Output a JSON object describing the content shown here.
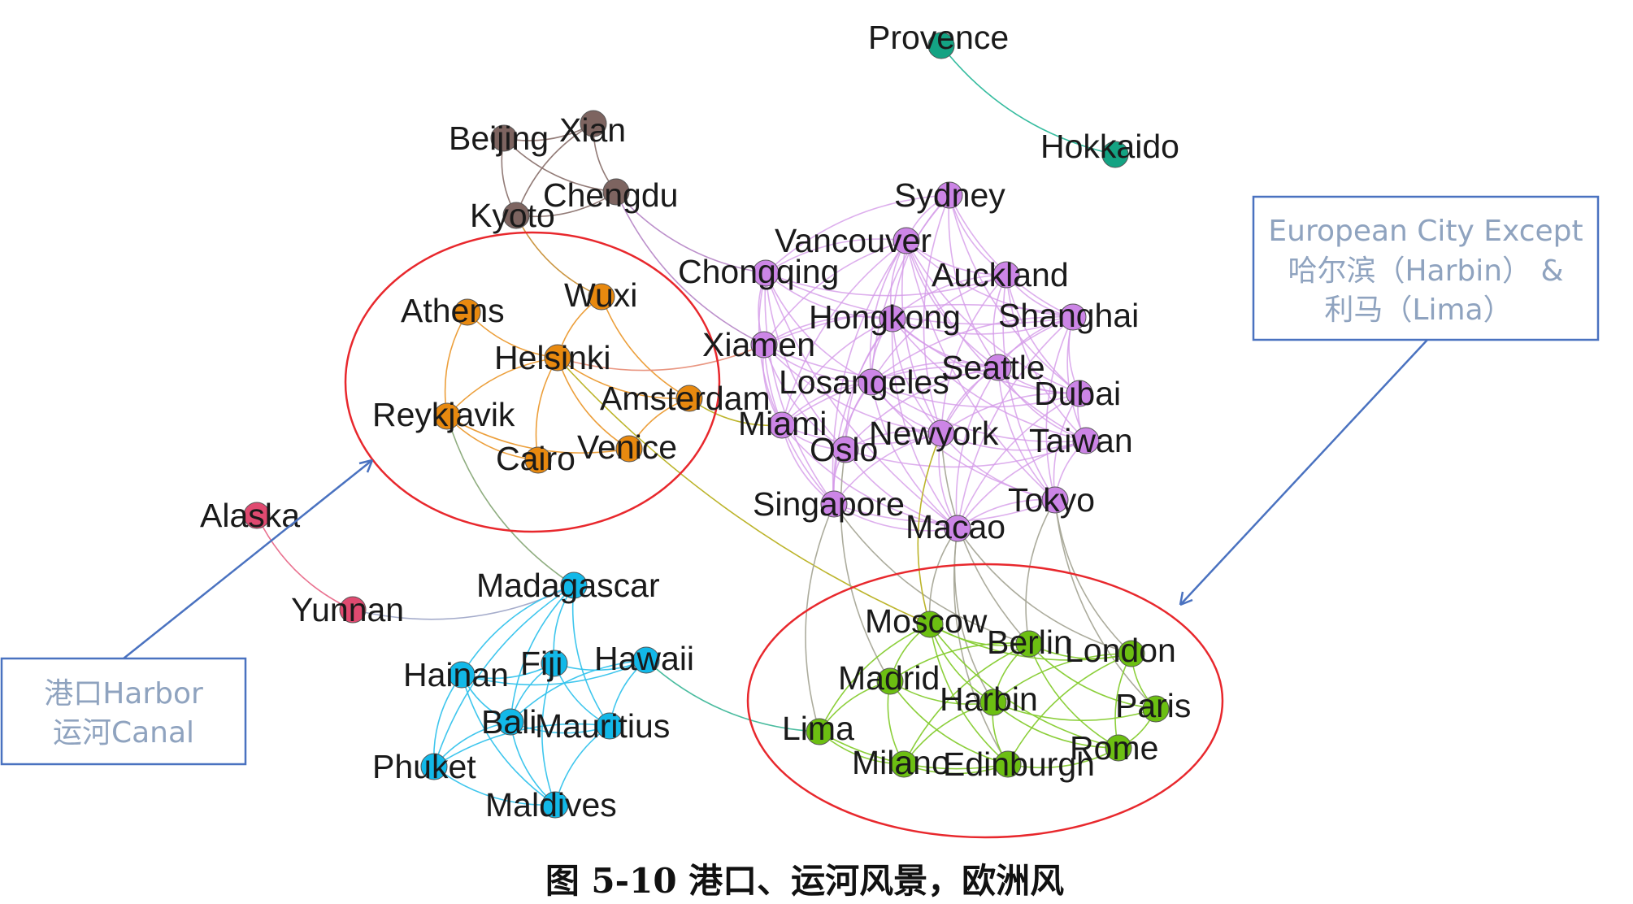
{
  "nodes": [
    {
      "id": "Provence",
      "label": "Provence",
      "group": "teal"
    },
    {
      "id": "Hokkaido",
      "label": "Hokkaido",
      "group": "teal"
    },
    {
      "id": "Beijing",
      "label": "Beijing",
      "group": "brown"
    },
    {
      "id": "Xian",
      "label": "Xian",
      "group": "brown"
    },
    {
      "id": "Chengdu",
      "label": "Chengdu",
      "group": "brown"
    },
    {
      "id": "Kyoto",
      "label": "Kyoto",
      "group": "brown"
    },
    {
      "id": "Sydney",
      "label": "Sydney",
      "group": "purple"
    },
    {
      "id": "Vancouver",
      "label": "Vancouver",
      "group": "purple"
    },
    {
      "id": "Chongqing",
      "label": "Chongqing",
      "group": "purple"
    },
    {
      "id": "Auckland",
      "label": "Auckland",
      "group": "purple"
    },
    {
      "id": "Hongkong",
      "label": "Hongkong",
      "group": "purple"
    },
    {
      "id": "Shanghai",
      "label": "Shanghai",
      "group": "purple"
    },
    {
      "id": "Xiamen",
      "label": "Xiamen",
      "group": "purple"
    },
    {
      "id": "Seattle",
      "label": "Seattle",
      "group": "purple"
    },
    {
      "id": "Losangeles",
      "label": "Losangeles",
      "group": "purple"
    },
    {
      "id": "Dubai",
      "label": "Dubai",
      "group": "purple"
    },
    {
      "id": "Miami",
      "label": "Miami",
      "group": "purple"
    },
    {
      "id": "Newyork",
      "label": "Newyork",
      "group": "purple"
    },
    {
      "id": "Oslo",
      "label": "Oslo",
      "group": "purple"
    },
    {
      "id": "Taiwan",
      "label": "Taiwan",
      "group": "purple"
    },
    {
      "id": "Singapore",
      "label": "Singapore",
      "group": "purple"
    },
    {
      "id": "Tokyo",
      "label": "Tokyo",
      "group": "purple"
    },
    {
      "id": "Macao",
      "label": "Macao",
      "group": "purple"
    },
    {
      "id": "Wuxi",
      "label": "Wuxi",
      "group": "orange"
    },
    {
      "id": "Athens",
      "label": "Athens",
      "group": "orange"
    },
    {
      "id": "Helsinki",
      "label": "Helsinki",
      "group": "orange"
    },
    {
      "id": "Amsterdam",
      "label": "Amsterdam",
      "group": "orange"
    },
    {
      "id": "Reykjavik",
      "label": "Reykjavik",
      "group": "orange"
    },
    {
      "id": "Cairo",
      "label": "Cairo",
      "group": "orange"
    },
    {
      "id": "Venice",
      "label": "Venice",
      "group": "orange"
    },
    {
      "id": "Alaska",
      "label": "Alaska",
      "group": "red"
    },
    {
      "id": "Yunnan",
      "label": "Yunnan",
      "group": "red"
    },
    {
      "id": "Madagascar",
      "label": "Madagascar",
      "group": "blue"
    },
    {
      "id": "Hainan",
      "label": "Hainan",
      "group": "blue"
    },
    {
      "id": "Fiji",
      "label": "Fiji",
      "group": "blue"
    },
    {
      "id": "Hawaii",
      "label": "Hawaii",
      "group": "blue"
    },
    {
      "id": "Bali",
      "label": "Bali",
      "group": "blue"
    },
    {
      "id": "Mauritius",
      "label": "Mauritius",
      "group": "blue"
    },
    {
      "id": "Phuket",
      "label": "Phuket",
      "group": "blue"
    },
    {
      "id": "Maldives",
      "label": "Maldives",
      "group": "blue"
    },
    {
      "id": "Moscow",
      "label": "Moscow",
      "group": "green"
    },
    {
      "id": "Berlin",
      "label": "Berlin",
      "group": "green"
    },
    {
      "id": "London",
      "label": "London",
      "group": "green"
    },
    {
      "id": "Madrid",
      "label": "Madrid",
      "group": "green"
    },
    {
      "id": "Harbin",
      "label": "Harbin",
      "group": "green"
    },
    {
      "id": "Paris",
      "label": "Paris",
      "group": "green"
    },
    {
      "id": "Lima",
      "label": "Lima",
      "group": "green"
    },
    {
      "id": "Rome",
      "label": "Rome",
      "group": "green"
    },
    {
      "id": "Milano",
      "label": "Milano",
      "group": "green"
    },
    {
      "id": "Edinburgh",
      "label": "Edinburgh",
      "group": "green"
    }
  ],
  "group_colors": {
    "teal": "#14a383",
    "brown": "#7d6460",
    "purple": "#cc85e6",
    "orange": "#e8890f",
    "red": "#e04a70",
    "blue": "#12b8e8",
    "green": "#6cbf12"
  },
  "edge_colors": {
    "teal": "#2bb89a",
    "brown": "#8c7470",
    "purple": "#d59be8",
    "orange": "#eb9a30",
    "red": "#e86a8a",
    "blue": "#35c3ec",
    "green": "#86cc30",
    "bridge_olive": "#b8b020",
    "bridge_gray": "#a8a898",
    "bridge_salmon": "#e8907a",
    "bridge_greengray": "#8aaa7a",
    "bridge_teal": "#40b89a",
    "bridge_mauve": "#b88ac8",
    "bridge_lilac": "#a0a8c8",
    "bridge_amber": "#c89038"
  },
  "edges": [
    [
      "Provence",
      "Hokkaido",
      "teal"
    ],
    [
      "Beijing",
      "Xian",
      "brown"
    ],
    [
      "Beijing",
      "Chengdu",
      "brown"
    ],
    [
      "Beijing",
      "Kyoto",
      "brown"
    ],
    [
      "Xian",
      "Chengdu",
      "brown"
    ],
    [
      "Xian",
      "Kyoto",
      "brown"
    ],
    [
      "Kyoto",
      "Chengdu",
      "brown"
    ],
    [
      "Chengdu",
      "Chongqing",
      "bridge_mauve"
    ],
    [
      "Chengdu",
      "Xiamen",
      "bridge_mauve"
    ],
    [
      "Kyoto",
      "Wuxi",
      "bridge_amber"
    ],
    [
      "Athens",
      "Reykjavik",
      "orange"
    ],
    [
      "Athens",
      "Helsinki",
      "orange"
    ],
    [
      "Wuxi",
      "Helsinki",
      "orange"
    ],
    [
      "Helsinki",
      "Amsterdam",
      "orange"
    ],
    [
      "Helsinki",
      "Reykjavik",
      "orange"
    ],
    [
      "Helsinki",
      "Cairo",
      "orange"
    ],
    [
      "Helsinki",
      "Venice",
      "orange"
    ],
    [
      "Amsterdam",
      "Venice",
      "orange"
    ],
    [
      "Reykjavik",
      "Cairo",
      "orange"
    ],
    [
      "Wuxi",
      "Amsterdam",
      "orange"
    ],
    [
      "Reykjavik",
      "Venice",
      "orange"
    ],
    [
      "Helsinki",
      "Xiamen",
      "bridge_salmon"
    ],
    [
      "Amsterdam",
      "Miami",
      "bridge_olive"
    ],
    [
      "Helsinki",
      "Moscow",
      "bridge_olive"
    ],
    [
      "Reykjavik",
      "Madagascar",
      "bridge_greengray"
    ],
    [
      "Alaska",
      "Yunnan",
      "red"
    ],
    [
      "Yunnan",
      "Madagascar",
      "bridge_lilac"
    ],
    [
      "Madagascar",
      "Hainan",
      "blue"
    ],
    [
      "Madagascar",
      "Fiji",
      "blue"
    ],
    [
      "Madagascar",
      "Bali",
      "blue"
    ],
    [
      "Madagascar",
      "Mauritius",
      "blue"
    ],
    [
      "Madagascar",
      "Phuket",
      "blue"
    ],
    [
      "Hainan",
      "Fiji",
      "blue"
    ],
    [
      "Hainan",
      "Bali",
      "blue"
    ],
    [
      "Hainan",
      "Phuket",
      "blue"
    ],
    [
      "Hainan",
      "Hawaii",
      "blue"
    ],
    [
      "Hainan",
      "Maldives",
      "blue"
    ],
    [
      "Fiji",
      "Hawaii",
      "blue"
    ],
    [
      "Fiji",
      "Bali",
      "blue"
    ],
    [
      "Fiji",
      "Mauritius",
      "blue"
    ],
    [
      "Fiji",
      "Maldives",
      "blue"
    ],
    [
      "Hawaii",
      "Mauritius",
      "blue"
    ],
    [
      "Hawaii",
      "Bali",
      "blue"
    ],
    [
      "Bali",
      "Mauritius",
      "blue"
    ],
    [
      "Bali",
      "Phuket",
      "blue"
    ],
    [
      "Bali",
      "Maldives",
      "blue"
    ],
    [
      "Mauritius",
      "Phuket",
      "blue"
    ],
    [
      "Mauritius",
      "Maldives",
      "blue"
    ],
    [
      "Phuket",
      "Maldives",
      "blue"
    ],
    [
      "Hawaii",
      "Lima",
      "bridge_teal"
    ],
    [
      "Sydney",
      "Vancouver",
      "purple"
    ],
    [
      "Sydney",
      "Chongqing",
      "purple"
    ],
    [
      "Sydney",
      "Auckland",
      "purple"
    ],
    [
      "Sydney",
      "Hongkong",
      "purple"
    ],
    [
      "Sydney",
      "Shanghai",
      "purple"
    ],
    [
      "Sydney",
      "Seattle",
      "purple"
    ],
    [
      "Sydney",
      "Losangeles",
      "purple"
    ],
    [
      "Sydney",
      "Newyork",
      "purple"
    ],
    [
      "Sydney",
      "Dubai",
      "purple"
    ],
    [
      "Vancouver",
      "Chongqing",
      "purple"
    ],
    [
      "Vancouver",
      "Auckland",
      "purple"
    ],
    [
      "Vancouver",
      "Hongkong",
      "purple"
    ],
    [
      "Vancouver",
      "Shanghai",
      "purple"
    ],
    [
      "Vancouver",
      "Xiamen",
      "purple"
    ],
    [
      "Vancouver",
      "Seattle",
      "purple"
    ],
    [
      "Vancouver",
      "Losangeles",
      "purple"
    ],
    [
      "Vancouver",
      "Dubai",
      "purple"
    ],
    [
      "Vancouver",
      "Miami",
      "purple"
    ],
    [
      "Vancouver",
      "Newyork",
      "purple"
    ],
    [
      "Vancouver",
      "Taiwan",
      "purple"
    ],
    [
      "Vancouver",
      "Tokyo",
      "purple"
    ],
    [
      "Chongqing",
      "Auckland",
      "purple"
    ],
    [
      "Chongqing",
      "Hongkong",
      "purple"
    ],
    [
      "Chongqing",
      "Xiamen",
      "purple"
    ],
    [
      "Chongqing",
      "Losangeles",
      "purple"
    ],
    [
      "Chongqing",
      "Miami",
      "purple"
    ],
    [
      "Chongqing",
      "Oslo",
      "purple"
    ],
    [
      "Chongqing",
      "Singapore",
      "purple"
    ],
    [
      "Chongqing",
      "Shanghai",
      "purple"
    ],
    [
      "Chongqing",
      "Macao",
      "purple"
    ],
    [
      "Auckland",
      "Hongkong",
      "purple"
    ],
    [
      "Auckland",
      "Shanghai",
      "purple"
    ],
    [
      "Auckland",
      "Seattle",
      "purple"
    ],
    [
      "Auckland",
      "Dubai",
      "purple"
    ],
    [
      "Auckland",
      "Losangeles",
      "purple"
    ],
    [
      "Auckland",
      "Newyork",
      "purple"
    ],
    [
      "Auckland",
      "Taiwan",
      "purple"
    ],
    [
      "Auckland",
      "Tokyo",
      "purple"
    ],
    [
      "Hongkong",
      "Shanghai",
      "purple"
    ],
    [
      "Hongkong",
      "Xiamen",
      "purple"
    ],
    [
      "Hongkong",
      "Seattle",
      "purple"
    ],
    [
      "Hongkong",
      "Losangeles",
      "purple"
    ],
    [
      "Hongkong",
      "Miami",
      "purple"
    ],
    [
      "Hongkong",
      "Newyork",
      "purple"
    ],
    [
      "Hongkong",
      "Oslo",
      "purple"
    ],
    [
      "Hongkong",
      "Singapore",
      "purple"
    ],
    [
      "Hongkong",
      "Macao",
      "purple"
    ],
    [
      "Hongkong",
      "Taiwan",
      "purple"
    ],
    [
      "Hongkong",
      "Dubai",
      "purple"
    ],
    [
      "Shanghai",
      "Seattle",
      "purple"
    ],
    [
      "Shanghai",
      "Dubai",
      "purple"
    ],
    [
      "Shanghai",
      "Losangeles",
      "purple"
    ],
    [
      "Shanghai",
      "Newyork",
      "purple"
    ],
    [
      "Shanghai",
      "Taiwan",
      "purple"
    ],
    [
      "Shanghai",
      "Tokyo",
      "purple"
    ],
    [
      "Shanghai",
      "Xiamen",
      "purple"
    ],
    [
      "Shanghai",
      "Macao",
      "purple"
    ],
    [
      "Xiamen",
      "Losangeles",
      "purple"
    ],
    [
      "Xiamen",
      "Miami",
      "purple"
    ],
    [
      "Xiamen",
      "Oslo",
      "purple"
    ],
    [
      "Xiamen",
      "Newyork",
      "purple"
    ],
    [
      "Xiamen",
      "Singapore",
      "purple"
    ],
    [
      "Xiamen",
      "Seattle",
      "purple"
    ],
    [
      "Seattle",
      "Losangeles",
      "purple"
    ],
    [
      "Seattle",
      "Dubai",
      "purple"
    ],
    [
      "Seattle",
      "Newyork",
      "purple"
    ],
    [
      "Seattle",
      "Taiwan",
      "purple"
    ],
    [
      "Seattle",
      "Tokyo",
      "purple"
    ],
    [
      "Seattle",
      "Macao",
      "purple"
    ],
    [
      "Seattle",
      "Oslo",
      "purple"
    ],
    [
      "Seattle",
      "Miami",
      "purple"
    ],
    [
      "Losangeles",
      "Miami",
      "purple"
    ],
    [
      "Losangeles",
      "Oslo",
      "purple"
    ],
    [
      "Losangeles",
      "Newyork",
      "purple"
    ],
    [
      "Losangeles",
      "Taiwan",
      "purple"
    ],
    [
      "Losangeles",
      "Singapore",
      "purple"
    ],
    [
      "Losangeles",
      "Macao",
      "purple"
    ],
    [
      "Losangeles",
      "Tokyo",
      "purple"
    ],
    [
      "Losangeles",
      "Dubai",
      "purple"
    ],
    [
      "Dubai",
      "Newyork",
      "purple"
    ],
    [
      "Dubai",
      "Taiwan",
      "purple"
    ],
    [
      "Dubai",
      "Tokyo",
      "purple"
    ],
    [
      "Dubai",
      "Macao",
      "purple"
    ],
    [
      "Miami",
      "Oslo",
      "purple"
    ],
    [
      "Miami",
      "Newyork",
      "purple"
    ],
    [
      "Miami",
      "Singapore",
      "purple"
    ],
    [
      "Miami",
      "Macao",
      "purple"
    ],
    [
      "Newyork",
      "Oslo",
      "purple"
    ],
    [
      "Newyork",
      "Taiwan",
      "purple"
    ],
    [
      "Newyork",
      "Tokyo",
      "purple"
    ],
    [
      "Newyork",
      "Singapore",
      "purple"
    ],
    [
      "Newyork",
      "Macao",
      "purple"
    ],
    [
      "Oslo",
      "Singapore",
      "purple"
    ],
    [
      "Oslo",
      "Macao",
      "purple"
    ],
    [
      "Oslo",
      "Taiwan",
      "purple"
    ],
    [
      "Taiwan",
      "Tokyo",
      "purple"
    ],
    [
      "Taiwan",
      "Macao",
      "purple"
    ],
    [
      "Singapore",
      "Macao",
      "purple"
    ],
    [
      "Singapore",
      "Tokyo",
      "purple"
    ],
    [
      "Tokyo",
      "Macao",
      "purple"
    ],
    [
      "Vancouver",
      "Singapore",
      "purple"
    ],
    [
      "Singapore",
      "Lima",
      "bridge_gray"
    ],
    [
      "Singapore",
      "Berlin",
      "bridge_gray"
    ],
    [
      "Oslo",
      "Madrid",
      "bridge_gray"
    ],
    [
      "Macao",
      "Moscow",
      "bridge_gray"
    ],
    [
      "Macao",
      "Harbin",
      "bridge_gray"
    ],
    [
      "Macao",
      "London",
      "bridge_gray"
    ],
    [
      "Newyork",
      "Moscow",
      "bridge_olive"
    ],
    [
      "Tokyo",
      "Berlin",
      "bridge_gray"
    ],
    [
      "Tokyo",
      "London",
      "bridge_gray"
    ],
    [
      "Tokyo",
      "Paris",
      "bridge_gray"
    ],
    [
      "Newyork",
      "Berlin",
      "bridge_gray"
    ],
    [
      "Macao",
      "Edinburgh",
      "bridge_gray"
    ],
    [
      "Moscow",
      "Berlin",
      "green"
    ],
    [
      "Moscow",
      "London",
      "green"
    ],
    [
      "Moscow",
      "Madrid",
      "green"
    ],
    [
      "Moscow",
      "Harbin",
      "green"
    ],
    [
      "Moscow",
      "Lima",
      "green"
    ],
    [
      "Moscow",
      "Edinburgh",
      "green"
    ],
    [
      "Moscow",
      "Rome",
      "green"
    ],
    [
      "Berlin",
      "London",
      "green"
    ],
    [
      "Berlin",
      "Madrid",
      "green"
    ],
    [
      "Berlin",
      "Harbin",
      "green"
    ],
    [
      "Berlin",
      "Paris",
      "green"
    ],
    [
      "Berlin",
      "Milano",
      "green"
    ],
    [
      "Berlin",
      "Rome",
      "green"
    ],
    [
      "London",
      "Paris",
      "green"
    ],
    [
      "London",
      "Harbin",
      "green"
    ],
    [
      "London",
      "Edinburgh",
      "green"
    ],
    [
      "London",
      "Rome",
      "green"
    ],
    [
      "Madrid",
      "Harbin",
      "green"
    ],
    [
      "Madrid",
      "Lima",
      "green"
    ],
    [
      "Madrid",
      "Milano",
      "green"
    ],
    [
      "Madrid",
      "Edinburgh",
      "green"
    ],
    [
      "Harbin",
      "Milano",
      "green"
    ],
    [
      "Harbin",
      "Edinburgh",
      "green"
    ],
    [
      "Harbin",
      "Paris",
      "green"
    ],
    [
      "Harbin",
      "Rome",
      "green"
    ],
    [
      "Lima",
      "Milano",
      "green"
    ],
    [
      "Milano",
      "Edinburgh",
      "green"
    ],
    [
      "Edinburgh",
      "Rome",
      "green"
    ],
    [
      "Rome",
      "Paris",
      "green"
    ],
    [
      "Lima",
      "Edinburgh",
      "green"
    ]
  ],
  "annotations": {
    "harbor_box_line1": "港口Harbor",
    "harbor_box_line2": "运河Canal",
    "europe_box_line1": "European City Except",
    "europe_box_line2": "哈尔滨（Harbin） &",
    "europe_box_line3": "利马（Lima）",
    "ellipse_color": "#e8282d",
    "box_border_color": "#4a72c0",
    "arrow_color": "#4a72c0",
    "box_text_color": "#8fa3bf"
  },
  "caption": "图 5-10  港口、运河风景，欧洲风"
}
